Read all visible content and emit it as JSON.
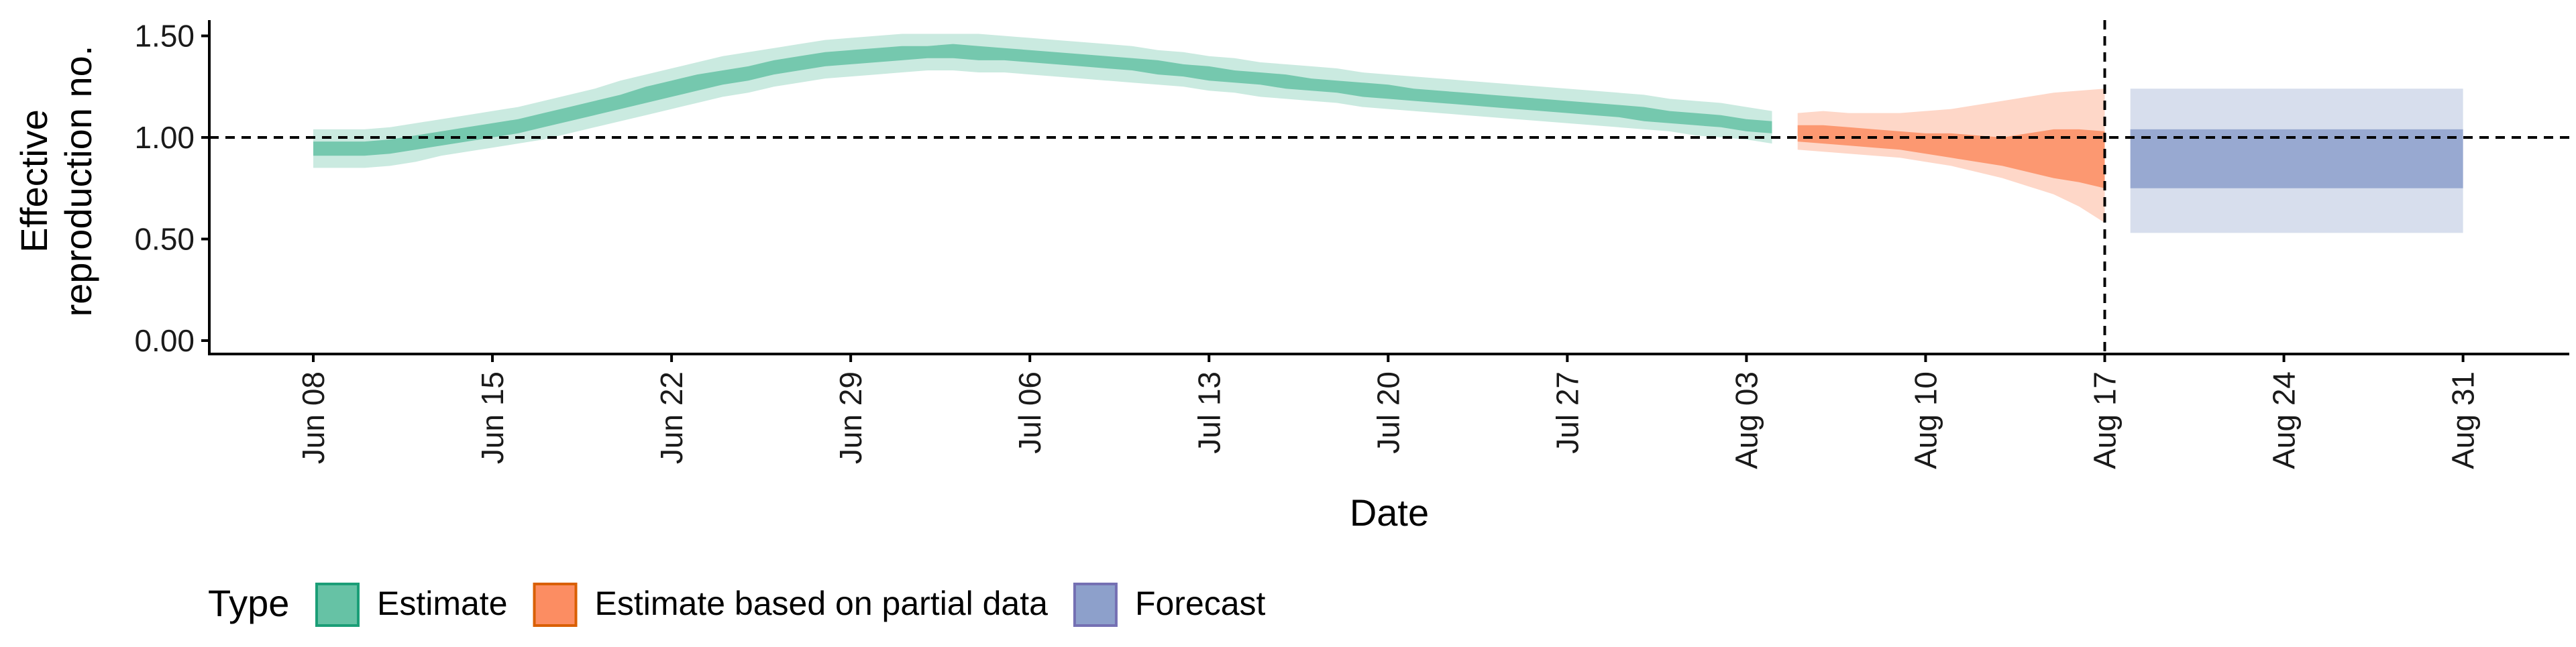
{
  "chart_data": {
    "type": "area",
    "title": "",
    "xlabel": "Date",
    "ylabel": "Effective\nreproduction no.",
    "ylim": [
      0,
      1.6
    ],
    "xlim": [
      "2020-06-04",
      "2020-09-05"
    ],
    "grid": false,
    "legend_position": "bottom-left",
    "x_tick_labels": [
      "Jun 08",
      "Jun 15",
      "Jun 22",
      "Jun 29",
      "Jul 06",
      "Jul 13",
      "Jul 20",
      "Jul 27",
      "Aug 03",
      "Aug 10",
      "Aug 17",
      "Aug 24",
      "Aug 31"
    ],
    "x_ticks": [
      "2020-06-08",
      "2020-06-15",
      "2020-06-22",
      "2020-06-29",
      "2020-07-06",
      "2020-07-13",
      "2020-07-20",
      "2020-07-27",
      "2020-08-03",
      "2020-08-10",
      "2020-08-17",
      "2020-08-24",
      "2020-08-31"
    ],
    "y_ticks": [
      0,
      0.5,
      1,
      1.5
    ],
    "y_tick_labels": [
      "0.00",
      "0.50",
      "1.00",
      "1.50"
    ],
    "reference_lines": {
      "horizontal_y": 1,
      "vertical_x": "2020-08-17"
    },
    "legend_title": "Type",
    "legend": [
      {
        "label": "Estimate",
        "fill": "#66c2a5",
        "stroke": "#1b9e77"
      },
      {
        "label": "Estimate based on partial data",
        "fill": "#fc8d62",
        "stroke": "#d95f02"
      },
      {
        "label": "Forecast",
        "fill": "#8da0cb",
        "stroke": "#7570b3"
      }
    ],
    "series": [
      {
        "name": "Estimate",
        "color": "#1b9e77",
        "x": [
          "2020-06-08",
          "2020-06-09",
          "2020-06-10",
          "2020-06-11",
          "2020-06-12",
          "2020-06-13",
          "2020-06-14",
          "2020-06-15",
          "2020-06-16",
          "2020-06-17",
          "2020-06-18",
          "2020-06-19",
          "2020-06-20",
          "2020-06-21",
          "2020-06-22",
          "2020-06-23",
          "2020-06-24",
          "2020-06-25",
          "2020-06-26",
          "2020-06-27",
          "2020-06-28",
          "2020-06-29",
          "2020-06-30",
          "2020-07-01",
          "2020-07-02",
          "2020-07-03",
          "2020-07-04",
          "2020-07-05",
          "2020-07-06",
          "2020-07-07",
          "2020-07-08",
          "2020-07-09",
          "2020-07-10",
          "2020-07-11",
          "2020-07-12",
          "2020-07-13",
          "2020-07-14",
          "2020-07-15",
          "2020-07-16",
          "2020-07-17",
          "2020-07-18",
          "2020-07-19",
          "2020-07-20",
          "2020-07-21",
          "2020-07-22",
          "2020-07-23",
          "2020-07-24",
          "2020-07-25",
          "2020-07-26",
          "2020-07-27",
          "2020-07-28",
          "2020-07-29",
          "2020-07-30",
          "2020-07-31",
          "2020-08-01",
          "2020-08-02",
          "2020-08-03",
          "2020-08-04"
        ],
        "lower_90": [
          0.85,
          0.85,
          0.85,
          0.86,
          0.88,
          0.91,
          0.93,
          0.95,
          0.97,
          0.99,
          1.02,
          1.05,
          1.08,
          1.11,
          1.14,
          1.17,
          1.2,
          1.22,
          1.25,
          1.27,
          1.29,
          1.3,
          1.31,
          1.32,
          1.33,
          1.33,
          1.32,
          1.32,
          1.31,
          1.3,
          1.29,
          1.28,
          1.27,
          1.26,
          1.25,
          1.23,
          1.22,
          1.2,
          1.19,
          1.18,
          1.17,
          1.15,
          1.14,
          1.13,
          1.12,
          1.11,
          1.1,
          1.09,
          1.08,
          1.07,
          1.06,
          1.05,
          1.04,
          1.03,
          1.01,
          1.0,
          0.99,
          0.97
        ],
        "lower_50": [
          0.91,
          0.91,
          0.91,
          0.92,
          0.94,
          0.96,
          0.98,
          1.0,
          1.02,
          1.05,
          1.08,
          1.11,
          1.14,
          1.17,
          1.2,
          1.23,
          1.26,
          1.28,
          1.31,
          1.33,
          1.35,
          1.36,
          1.37,
          1.38,
          1.39,
          1.39,
          1.38,
          1.38,
          1.37,
          1.36,
          1.35,
          1.34,
          1.33,
          1.31,
          1.3,
          1.28,
          1.27,
          1.26,
          1.24,
          1.23,
          1.22,
          1.2,
          1.19,
          1.18,
          1.17,
          1.16,
          1.15,
          1.14,
          1.13,
          1.12,
          1.11,
          1.1,
          1.08,
          1.07,
          1.06,
          1.05,
          1.03,
          1.02
        ],
        "upper_50": [
          0.98,
          0.98,
          0.98,
          0.99,
          1.01,
          1.03,
          1.05,
          1.07,
          1.09,
          1.12,
          1.15,
          1.18,
          1.21,
          1.25,
          1.28,
          1.31,
          1.33,
          1.35,
          1.38,
          1.4,
          1.42,
          1.43,
          1.44,
          1.45,
          1.45,
          1.46,
          1.45,
          1.44,
          1.43,
          1.42,
          1.41,
          1.4,
          1.39,
          1.38,
          1.36,
          1.35,
          1.33,
          1.32,
          1.31,
          1.29,
          1.28,
          1.27,
          1.26,
          1.24,
          1.23,
          1.22,
          1.21,
          1.2,
          1.19,
          1.18,
          1.17,
          1.16,
          1.15,
          1.13,
          1.12,
          1.11,
          1.09,
          1.08
        ],
        "upper_90": [
          1.04,
          1.04,
          1.04,
          1.05,
          1.07,
          1.09,
          1.11,
          1.13,
          1.15,
          1.18,
          1.21,
          1.24,
          1.28,
          1.31,
          1.34,
          1.37,
          1.4,
          1.42,
          1.44,
          1.46,
          1.48,
          1.49,
          1.5,
          1.51,
          1.51,
          1.51,
          1.51,
          1.5,
          1.49,
          1.48,
          1.47,
          1.46,
          1.45,
          1.43,
          1.42,
          1.4,
          1.39,
          1.37,
          1.36,
          1.35,
          1.34,
          1.32,
          1.31,
          1.3,
          1.29,
          1.28,
          1.27,
          1.26,
          1.25,
          1.24,
          1.23,
          1.22,
          1.21,
          1.19,
          1.18,
          1.17,
          1.15,
          1.13
        ]
      },
      {
        "name": "Estimate based on partial data",
        "color": "#d95f02",
        "x": [
          "2020-08-05",
          "2020-08-06",
          "2020-08-07",
          "2020-08-08",
          "2020-08-09",
          "2020-08-10",
          "2020-08-11",
          "2020-08-12",
          "2020-08-13",
          "2020-08-14",
          "2020-08-15",
          "2020-08-16",
          "2020-08-17"
        ],
        "lower_90": [
          0.94,
          0.93,
          0.92,
          0.91,
          0.9,
          0.88,
          0.86,
          0.83,
          0.8,
          0.76,
          0.72,
          0.66,
          0.58
        ],
        "lower_50": [
          0.98,
          0.97,
          0.96,
          0.95,
          0.94,
          0.92,
          0.9,
          0.88,
          0.86,
          0.83,
          0.8,
          0.78,
          0.75
        ],
        "upper_50": [
          1.06,
          1.06,
          1.05,
          1.04,
          1.03,
          1.02,
          1.02,
          1.01,
          1.0,
          1.02,
          1.04,
          1.04,
          1.03
        ],
        "upper_90": [
          1.12,
          1.13,
          1.12,
          1.12,
          1.12,
          1.13,
          1.14,
          1.16,
          1.18,
          1.2,
          1.22,
          1.23,
          1.24
        ]
      },
      {
        "name": "Forecast",
        "color": "#7570b3",
        "x": [
          "2020-08-18",
          "2020-08-31"
        ],
        "lower_90": [
          0.53,
          0.53
        ],
        "lower_50": [
          0.75,
          0.75
        ],
        "upper_50": [
          1.04,
          1.04
        ],
        "upper_90": [
          1.24,
          1.24
        ]
      }
    ]
  }
}
